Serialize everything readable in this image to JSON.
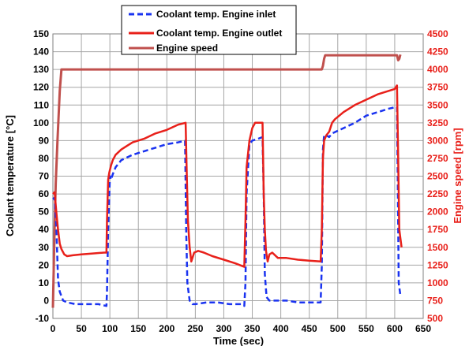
{
  "chart_data": {
    "type": "line",
    "xlabel": "Time (sec)",
    "ylabel": "Coolant temperature  [°C]",
    "y2label": "Engine speed [rpm]",
    "xlim": [
      0,
      650
    ],
    "ylim": [
      -10,
      150
    ],
    "y2lim": [
      500,
      4500
    ],
    "x_ticks": [
      0,
      50,
      100,
      150,
      200,
      250,
      300,
      350,
      400,
      450,
      500,
      550,
      600,
      650
    ],
    "y_ticks": [
      -10,
      0,
      10,
      20,
      30,
      40,
      50,
      60,
      70,
      80,
      90,
      100,
      110,
      120,
      130,
      140,
      150
    ],
    "y2_ticks": [
      500,
      750,
      1000,
      1250,
      1500,
      1750,
      2000,
      2250,
      2500,
      2750,
      3000,
      3250,
      3500,
      3750,
      4000,
      4250,
      4500
    ],
    "grid": true,
    "legend_position": "top",
    "series": [
      {
        "name": "Coolant temp. Engine inlet",
        "axis": "left",
        "color": "#1a33f0",
        "style": "dashed",
        "x": [
          0,
          3,
          6,
          9,
          12,
          18,
          25,
          40,
          60,
          80,
          94,
          95,
          97,
          100,
          102,
          105,
          110,
          120,
          140,
          160,
          180,
          200,
          220,
          232,
          234,
          236,
          240,
          245,
          250,
          270,
          290,
          310,
          330,
          336,
          338,
          340,
          345,
          350,
          360,
          368,
          370,
          372,
          375,
          380,
          390,
          410,
          430,
          450,
          470,
          472,
          474,
          476,
          480,
          485,
          490,
          510,
          530,
          550,
          570,
          590,
          604,
          605,
          607,
          610
        ],
        "y": [
          57,
          58,
          42,
          12,
          5,
          0,
          -1,
          -2,
          -2,
          -2,
          -3,
          5,
          40,
          70,
          68,
          71,
          75,
          79,
          82,
          84,
          86,
          88,
          89,
          90,
          40,
          10,
          0,
          -2,
          -2,
          -1,
          -1,
          -2,
          -2,
          -3,
          10,
          60,
          88,
          90,
          91,
          92,
          60,
          15,
          2,
          0,
          0,
          0,
          -1,
          -1,
          -1,
          20,
          85,
          93,
          93,
          92,
          94,
          97,
          100,
          104,
          106,
          108,
          109,
          80,
          10,
          3
        ]
      },
      {
        "name": "Coolant temp. Engine outlet",
        "axis": "left",
        "color": "#e8201a",
        "style": "solid",
        "x": [
          0,
          3,
          6,
          9,
          12,
          15,
          20,
          25,
          35,
          50,
          70,
          90,
          94,
          95,
          97,
          99,
          102,
          105,
          110,
          120,
          130,
          140,
          160,
          180,
          200,
          220,
          233,
          235,
          237,
          240,
          243,
          248,
          255,
          265,
          280,
          300,
          320,
          336,
          338,
          340,
          345,
          350,
          355,
          360,
          368,
          370,
          372,
          374,
          377,
          380,
          385,
          395,
          410,
          430,
          450,
          470,
          472,
          474,
          476,
          480,
          485,
          490,
          495,
          510,
          530,
          550,
          570,
          590,
          600,
          604,
          606,
          608,
          612
        ],
        "y": [
          60,
          61,
          50,
          40,
          32,
          29,
          26,
          25,
          25.5,
          26,
          26.5,
          27,
          27,
          45,
          68,
          72,
          76,
          79,
          82,
          85,
          87,
          89,
          91,
          94,
          96,
          99,
          100,
          70,
          45,
          30,
          22,
          27,
          28,
          27,
          25,
          23,
          21,
          19,
          45,
          75,
          90,
          97,
          100,
          100,
          100,
          60,
          40,
          28,
          22,
          26,
          27,
          24,
          24,
          23,
          22.5,
          22,
          40,
          80,
          90,
          93,
          95,
          100,
          102,
          106,
          110,
          113,
          116,
          118,
          119,
          121,
          80,
          40,
          30
        ]
      },
      {
        "name": "Engine speed",
        "axis": "right",
        "color": "#c0504d",
        "style": "solid",
        "x": [
          0,
          3,
          5,
          8,
          12,
          15,
          20,
          50,
          100,
          150,
          200,
          250,
          300,
          350,
          400,
          450,
          472,
          474,
          476,
          478,
          490,
          520,
          560,
          600,
          604,
          606,
          608,
          610
        ],
        "y": [
          650,
          1800,
          2400,
          3000,
          3700,
          4000,
          4000,
          4000,
          4000,
          4000,
          4000,
          4000,
          4000,
          4000,
          4000,
          4000,
          4000,
          4050,
          4150,
          4200,
          4200,
          4200,
          4200,
          4200,
          4200,
          4130,
          4150,
          4210
        ]
      }
    ]
  }
}
